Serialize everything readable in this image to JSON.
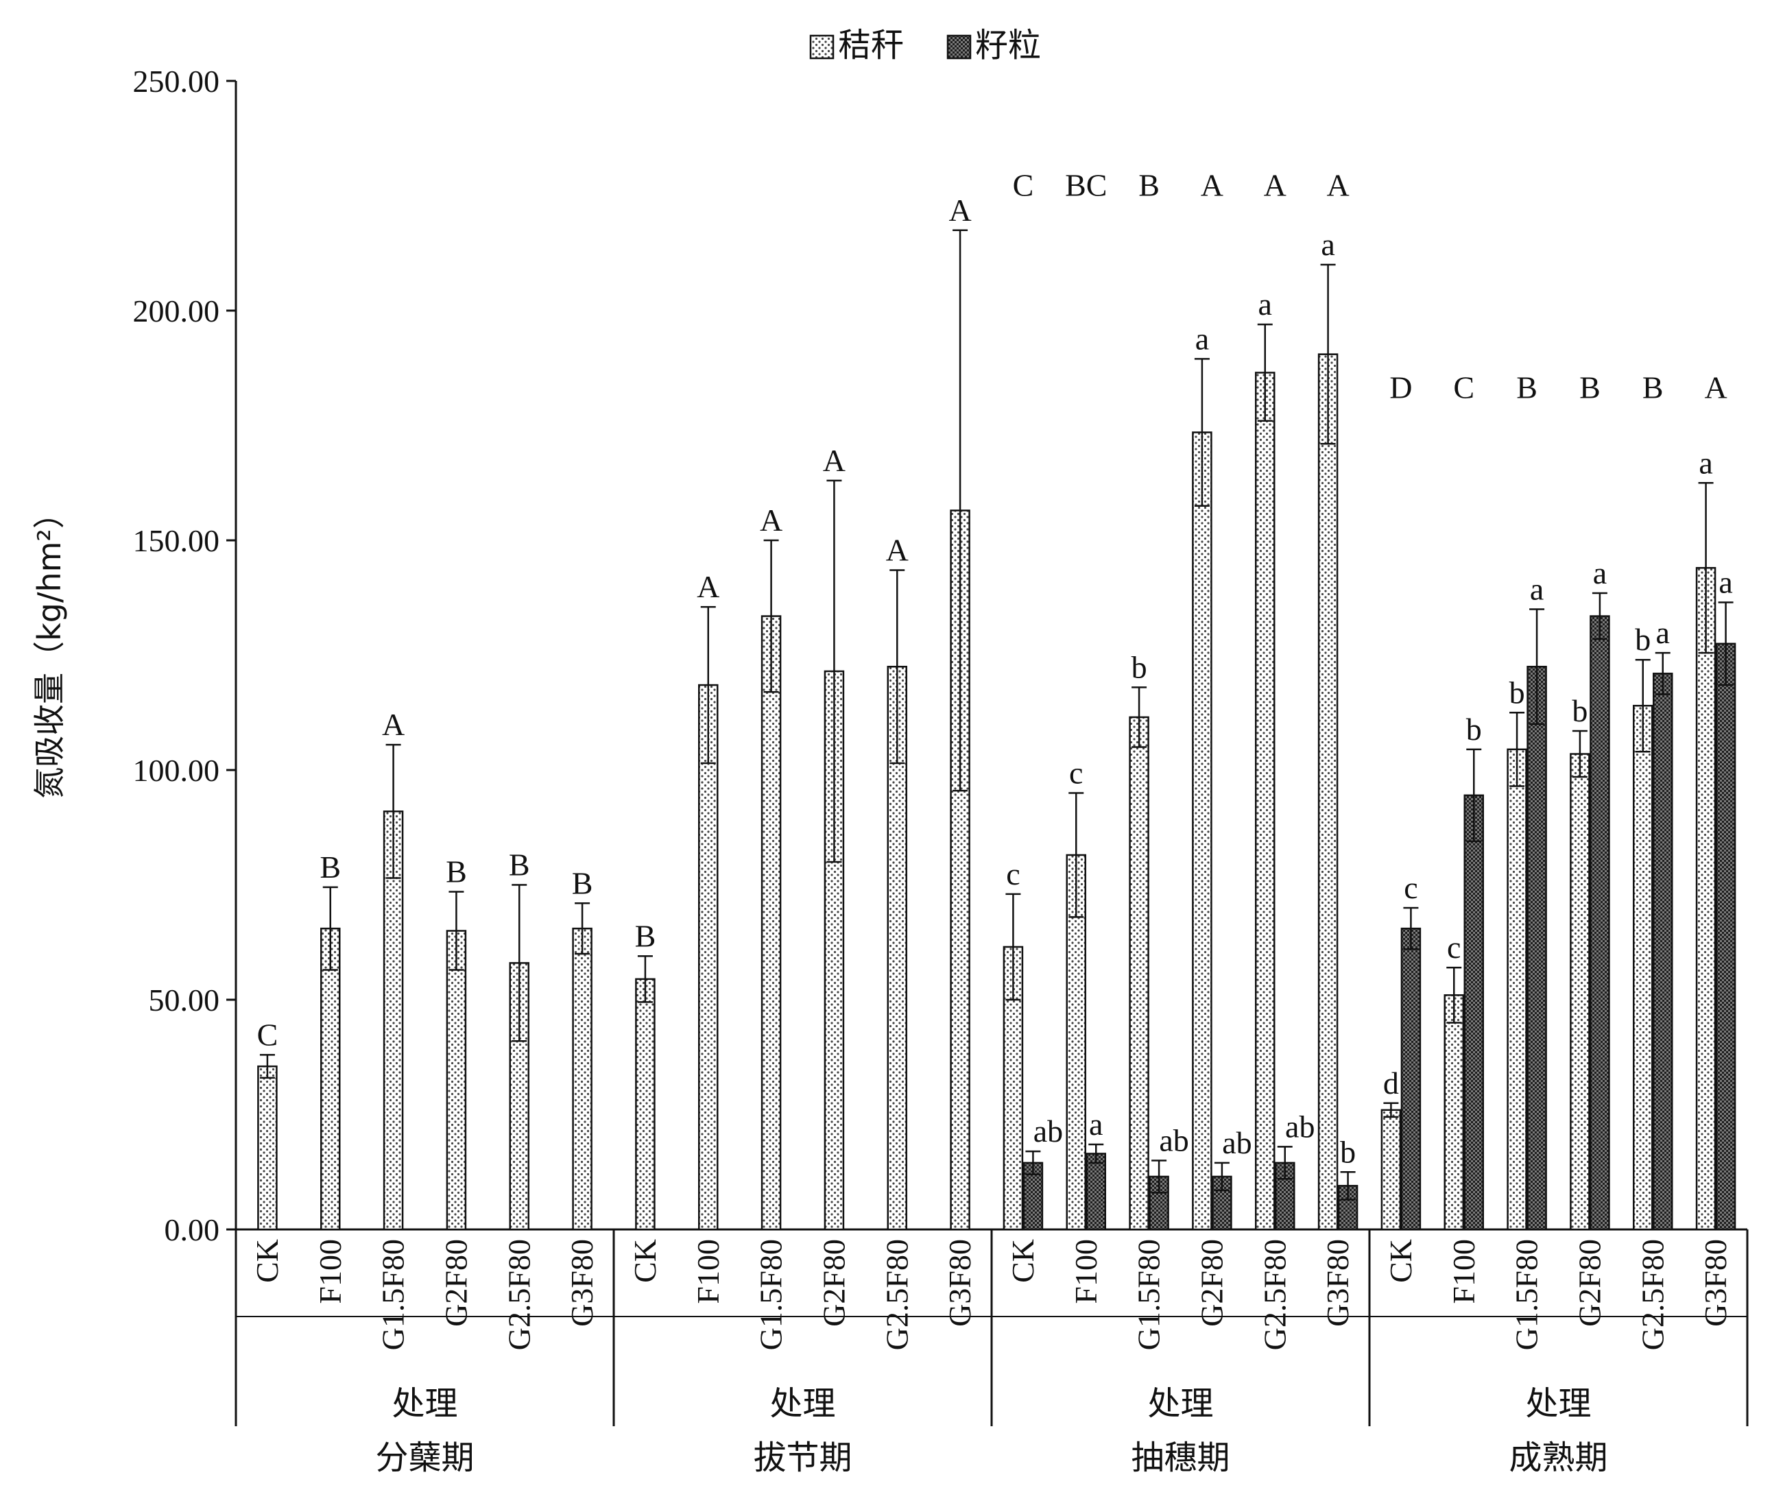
{
  "chart_data": {
    "type": "bar",
    "ylabel": "氮吸收量（kg/hm²）",
    "ylim": [
      0,
      250
    ],
    "yticks": [
      "0.00",
      "50.00",
      "100.00",
      "150.00",
      "200.00",
      "250.00"
    ],
    "xlabel": "处理",
    "legend": {
      "position": "top-center",
      "items": [
        {
          "name": "秸秆",
          "pattern": "light-dots",
          "color": "#dcdcdc"
        },
        {
          "name": "籽粒",
          "pattern": "dense-dots",
          "color": "#5a5a5a"
        }
      ]
    },
    "categories": [
      "CK",
      "F100",
      "G1.5F80",
      "G2F80",
      "G2.5F80",
      "G3F80"
    ],
    "groups": [
      {
        "stage": "分蘖期",
        "axis_label": "处理",
        "letter_row": null,
        "bars": [
          {
            "category": "CK",
            "series": "秸秆",
            "value": 35.5,
            "err": 2.5,
            "label": "C"
          },
          {
            "category": "F100",
            "series": "秸秆",
            "value": 65.5,
            "err": 9.0,
            "label": "B"
          },
          {
            "category": "G1.5F80",
            "series": "秸秆",
            "value": 91.0,
            "err": 14.5,
            "label": "A"
          },
          {
            "category": "G2F80",
            "series": "秸秆",
            "value": 65.0,
            "err": 8.5,
            "label": "B"
          },
          {
            "category": "G2.5F80",
            "series": "秸秆",
            "value": 58.0,
            "err": 17.0,
            "label": "B"
          },
          {
            "category": "G3F80",
            "series": "秸秆",
            "value": 65.5,
            "err": 5.5,
            "label": "B"
          }
        ]
      },
      {
        "stage": "拔节期",
        "axis_label": "处理",
        "letter_row": null,
        "bars": [
          {
            "category": "CK",
            "series": "秸秆",
            "value": 54.5,
            "err": 5.0,
            "label": "B"
          },
          {
            "category": "F100",
            "series": "秸秆",
            "value": 118.5,
            "err": 17.0,
            "label": "A"
          },
          {
            "category": "G1.5F80",
            "series": "秸秆",
            "value": 133.5,
            "err": 16.5,
            "label": "A"
          },
          {
            "category": "G2F80",
            "series": "秸秆",
            "value": 121.5,
            "err": 41.5,
            "label": "A"
          },
          {
            "category": "G2.5F80",
            "series": "秸秆",
            "value": 122.5,
            "err": 21.0,
            "label": "A"
          },
          {
            "category": "G3F80",
            "series": "秸秆",
            "value": 156.5,
            "err": 61.0,
            "label": "A"
          }
        ]
      },
      {
        "stage": "抽穗期",
        "axis_label": "处理",
        "letter_row": [
          "C",
          "BC",
          "B",
          "A",
          "A",
          "A"
        ],
        "bars": [
          {
            "category": "CK",
            "series": "秸秆",
            "value": 61.5,
            "err": 11.5,
            "label": "c"
          },
          {
            "category": "CK",
            "series": "籽粒",
            "value": 14.5,
            "err": 2.5,
            "label": "ab"
          },
          {
            "category": "F100",
            "series": "秸秆",
            "value": 81.5,
            "err": 13.5,
            "label": "c"
          },
          {
            "category": "F100",
            "series": "籽粒",
            "value": 16.5,
            "err": 2.0,
            "label": "a"
          },
          {
            "category": "G1.5F80",
            "series": "秸秆",
            "value": 111.5,
            "err": 6.5,
            "label": "b"
          },
          {
            "category": "G1.5F80",
            "series": "籽粒",
            "value": 11.5,
            "err": 3.5,
            "label": "ab"
          },
          {
            "category": "G2F80",
            "series": "秸秆",
            "value": 173.5,
            "err": 16.0,
            "label": "a"
          },
          {
            "category": "G2F80",
            "series": "籽粒",
            "value": 11.5,
            "err": 3.0,
            "label": "ab"
          },
          {
            "category": "G2.5F80",
            "series": "秸秆",
            "value": 186.5,
            "err": 10.5,
            "label": "a"
          },
          {
            "category": "G2.5F80",
            "series": "籽粒",
            "value": 14.5,
            "err": 3.5,
            "label": "ab"
          },
          {
            "category": "G3F80",
            "series": "秸秆",
            "value": 190.5,
            "err": 19.5,
            "label": "a"
          },
          {
            "category": "G3F80",
            "series": "籽粒",
            "value": 9.5,
            "err": 3.0,
            "label": "b"
          }
        ]
      },
      {
        "stage": "成熟期",
        "axis_label": "处理",
        "letter_row": [
          "D",
          "C",
          "B",
          "B",
          "B",
          "A"
        ],
        "bars": [
          {
            "category": "CK",
            "series": "秸秆",
            "value": 26.0,
            "err": 1.5,
            "label": "d"
          },
          {
            "category": "CK",
            "series": "籽粒",
            "value": 65.5,
            "err": 4.5,
            "label": "c"
          },
          {
            "category": "F100",
            "series": "秸秆",
            "value": 51.0,
            "err": 6.0,
            "label": "c"
          },
          {
            "category": "F100",
            "series": "籽粒",
            "value": 94.5,
            "err": 10.0,
            "label": "b"
          },
          {
            "category": "G1.5F80",
            "series": "秸秆",
            "value": 104.5,
            "err": 8.0,
            "label": "b"
          },
          {
            "category": "G1.5F80",
            "series": "籽粒",
            "value": 122.5,
            "err": 12.5,
            "label": "a"
          },
          {
            "category": "G2F80",
            "series": "秸秆",
            "value": 103.5,
            "err": 5.0,
            "label": "b"
          },
          {
            "category": "G2F80",
            "series": "籽粒",
            "value": 133.5,
            "err": 5.0,
            "label": "a"
          },
          {
            "category": "G2.5F80",
            "series": "秸秆",
            "value": 114.0,
            "err": 10.0,
            "label": "b"
          },
          {
            "category": "G2.5F80",
            "series": "籽粒",
            "value": 121.0,
            "err": 4.5,
            "label": "a"
          },
          {
            "category": "G3F80",
            "series": "秸秆",
            "value": 144.0,
            "err": 18.5,
            "label": "a"
          },
          {
            "category": "G3F80",
            "series": "籽粒",
            "value": 127.5,
            "err": 9.0,
            "label": "a"
          }
        ]
      }
    ]
  }
}
